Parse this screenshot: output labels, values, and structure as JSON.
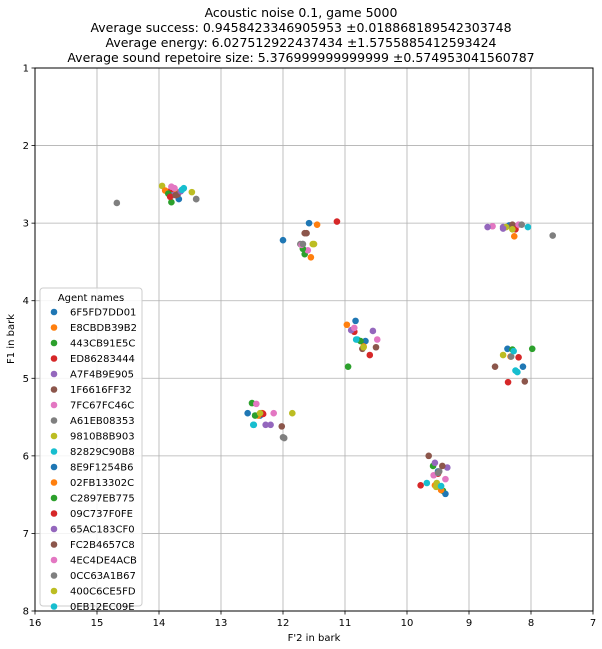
{
  "chart_data": {
    "type": "scatter",
    "title_lines": [
      "Acoustic noise 0.1, game 5000",
      "Average success: 0.9458423346905953 ±0.018868189542303748",
      "Average energy: 6.027512922437434 ±1.5755885412593424",
      "Average sound repetoire size: 5.376999999999999 ±0.574953041560787"
    ],
    "xlabel": "F'2 in bark",
    "ylabel": "F1 in bark",
    "xlim": [
      16,
      7
    ],
    "ylim": [
      8,
      1
    ],
    "x_reversed": true,
    "y_reversed": true,
    "x_ticks": [
      16,
      15,
      14,
      13,
      12,
      11,
      10,
      9,
      8,
      7
    ],
    "y_ticks": [
      1,
      2,
      3,
      4,
      5,
      6,
      7,
      8
    ],
    "grid": true,
    "legend": {
      "title": "Agent names",
      "placement": "lower-left"
    },
    "series": [
      {
        "name": "6F5FD7DD01",
        "color": "#1f77b4",
        "points": [
          [
            13.68,
            2.69
          ],
          [
            11.58,
            3.0
          ],
          [
            10.83,
            4.26
          ],
          [
            8.35,
            3.03
          ],
          [
            12.37,
            5.48
          ],
          [
            9.5,
            6.2
          ]
        ]
      },
      {
        "name": "E8CBDB39B2",
        "color": "#ff7f0e",
        "points": [
          [
            13.72,
            2.6
          ],
          [
            11.45,
            3.02
          ],
          [
            10.97,
            4.31
          ],
          [
            8.27,
            3.17
          ],
          [
            12.33,
            5.45
          ],
          [
            9.55,
            6.38
          ]
        ]
      },
      {
        "name": "443CB91E5C",
        "color": "#2ca02c",
        "points": [
          [
            13.8,
            2.73
          ],
          [
            11.65,
            3.4
          ],
          [
            10.95,
            4.85
          ],
          [
            7.98,
            4.62
          ],
          [
            12.5,
            5.32
          ],
          [
            9.42,
            6.45
          ]
        ]
      },
      {
        "name": "ED86283444",
        "color": "#d62728",
        "points": [
          [
            13.82,
            2.59
          ],
          [
            11.13,
            2.98
          ],
          [
            10.6,
            4.7
          ],
          [
            8.37,
            5.05
          ],
          [
            12.35,
            5.45
          ],
          [
            9.78,
            6.38
          ]
        ]
      },
      {
        "name": "A7F4B9E905",
        "color": "#9467bd",
        "points": [
          [
            13.78,
            2.64
          ],
          [
            11.68,
            3.27
          ],
          [
            10.55,
            4.39
          ],
          [
            8.45,
            3.05
          ],
          [
            12.2,
            5.6
          ],
          [
            9.35,
            6.15
          ]
        ]
      },
      {
        "name": "1F6616FF32",
        "color": "#8c564b",
        "points": [
          [
            13.7,
            2.63
          ],
          [
            11.62,
            3.13
          ],
          [
            10.5,
            4.6
          ],
          [
            8.3,
            3.02
          ],
          [
            12.02,
            5.62
          ],
          [
            9.65,
            6.0
          ]
        ]
      },
      {
        "name": "7FC67FC46C",
        "color": "#e377c2",
        "points": [
          [
            13.75,
            2.55
          ],
          [
            11.6,
            3.35
          ],
          [
            10.48,
            4.5
          ],
          [
            8.62,
            3.04
          ],
          [
            12.43,
            5.33
          ],
          [
            9.38,
            6.3
          ]
        ]
      },
      {
        "name": "A61EB08353",
        "color": "#7f7f7f",
        "points": [
          [
            14.68,
            2.74
          ],
          [
            13.4,
            2.69
          ],
          [
            11.72,
            3.27
          ],
          [
            7.65,
            3.16
          ],
          [
            11.98,
            5.77
          ],
          [
            9.48,
            6.2
          ]
        ]
      },
      {
        "name": "9810B8B903",
        "color": "#bcbd22",
        "points": [
          [
            13.95,
            2.52
          ],
          [
            11.52,
            3.27
          ],
          [
            8.45,
            4.7
          ],
          [
            8.4,
            3.05
          ],
          [
            11.85,
            5.45
          ],
          [
            9.52,
            6.35
          ]
        ]
      },
      {
        "name": "82829C90B8",
        "color": "#17becf",
        "points": [
          [
            13.6,
            2.55
          ],
          [
            10.8,
            4.5
          ],
          [
            8.05,
            3.05
          ],
          [
            8.25,
            4.9
          ],
          [
            12.47,
            5.6
          ],
          [
            9.68,
            6.35
          ]
        ]
      },
      {
        "name": "8E9F1254B6",
        "color": "#1f77b4",
        "points": [
          [
            12.0,
            3.22
          ],
          [
            10.67,
            4.52
          ],
          [
            8.38,
            4.62
          ],
          [
            8.13,
            4.85
          ],
          [
            12.57,
            5.45
          ],
          [
            9.38,
            6.49
          ]
        ]
      },
      {
        "name": "02FB13302C",
        "color": "#ff7f0e",
        "points": [
          [
            13.9,
            2.58
          ],
          [
            11.55,
            3.44
          ],
          [
            10.7,
            4.59
          ],
          [
            8.33,
            4.72
          ],
          [
            12.4,
            5.48
          ],
          [
            9.45,
            6.44
          ]
        ]
      },
      {
        "name": "C2897EB775",
        "color": "#2ca02c",
        "points": [
          [
            13.85,
            2.62
          ],
          [
            11.68,
            3.33
          ],
          [
            10.75,
            4.52
          ],
          [
            8.3,
            4.63
          ],
          [
            12.45,
            5.48
          ],
          [
            9.58,
            6.13
          ]
        ]
      },
      {
        "name": "09C737F0FE",
        "color": "#d62728",
        "points": [
          [
            13.82,
            2.66
          ],
          [
            10.85,
            4.4
          ],
          [
            8.2,
            4.73
          ],
          [
            8.25,
            3.08
          ],
          [
            12.32,
            5.46
          ],
          [
            9.5,
            6.23
          ]
        ]
      },
      {
        "name": "65AC183CF0",
        "color": "#9467bd",
        "points": [
          [
            13.65,
            2.59
          ],
          [
            10.9,
            4.38
          ],
          [
            8.7,
            3.05
          ],
          [
            8.45,
            3.07
          ],
          [
            12.28,
            5.6
          ],
          [
            9.55,
            6.09
          ]
        ]
      },
      {
        "name": "FC2B4657C8",
        "color": "#8c564b",
        "points": [
          [
            13.73,
            2.64
          ],
          [
            11.65,
            3.13
          ],
          [
            10.72,
            4.62
          ],
          [
            8.58,
            4.85
          ],
          [
            8.1,
            5.04
          ],
          [
            9.43,
            6.13
          ]
        ]
      },
      {
        "name": "4EC4DE4ACB",
        "color": "#e377c2",
        "points": [
          [
            13.8,
            2.53
          ],
          [
            11.7,
            3.28
          ],
          [
            10.85,
            4.35
          ],
          [
            8.2,
            3.02
          ],
          [
            12.15,
            5.45
          ],
          [
            9.57,
            6.25
          ]
        ]
      },
      {
        "name": "0CC63A1B67",
        "color": "#7f7f7f",
        "points": [
          [
            13.4,
            2.69
          ],
          [
            11.68,
            3.27
          ],
          [
            8.32,
            4.72
          ],
          [
            8.15,
            3.02
          ],
          [
            12.0,
            5.76
          ],
          [
            9.5,
            6.22
          ]
        ]
      },
      {
        "name": "400C6CE5FD",
        "color": "#bcbd22",
        "points": [
          [
            13.47,
            2.6
          ],
          [
            11.5,
            3.27
          ],
          [
            10.7,
            4.6
          ],
          [
            8.3,
            3.08
          ],
          [
            12.37,
            5.45
          ],
          [
            9.53,
            6.4
          ]
        ]
      },
      {
        "name": "0EB12EC09E",
        "color": "#17becf",
        "points": [
          [
            13.63,
            2.57
          ],
          [
            10.82,
            4.5
          ],
          [
            8.28,
            4.65
          ],
          [
            8.22,
            4.92
          ],
          [
            12.48,
            5.6
          ],
          [
            9.45,
            6.39
          ]
        ]
      }
    ]
  }
}
